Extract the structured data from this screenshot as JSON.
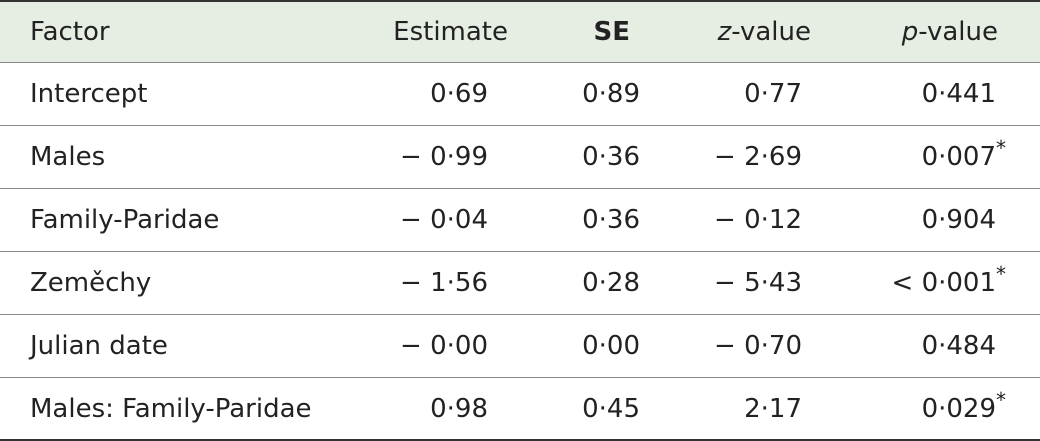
{
  "columns": {
    "factor": "Factor",
    "estimate": "Estimate",
    "se": "SE",
    "z_italic": "z",
    "z_rest": "-value",
    "p_italic": "p",
    "p_rest": "-value"
  },
  "rows": [
    {
      "factor": "Intercept",
      "estimate": "0·69",
      "se": "0·89",
      "z": "0·77",
      "p": "0·441",
      "sig": ""
    },
    {
      "factor": "Males",
      "estimate": "− 0·99",
      "se": "0·36",
      "z": "− 2·69",
      "p": "0·007",
      "sig": "*"
    },
    {
      "factor": "Family-Paridae",
      "estimate": "− 0·04",
      "se": "0·36",
      "z": "− 0·12",
      "p": "0·904",
      "sig": ""
    },
    {
      "factor": "Zeměchy",
      "estimate": "− 1·56",
      "se": "0·28",
      "z": "− 5·43",
      "p": "< 0·001",
      "sig": "*"
    },
    {
      "factor": "Julian date",
      "estimate": "− 0·00",
      "se": "0·00",
      "z": "− 0·70",
      "p": "0·484",
      "sig": ""
    },
    {
      "factor": "Males: Family-Paridae",
      "estimate": "0·98",
      "se": "0·45",
      "z": "2·17",
      "p": "0·029",
      "sig": "*"
    }
  ]
}
